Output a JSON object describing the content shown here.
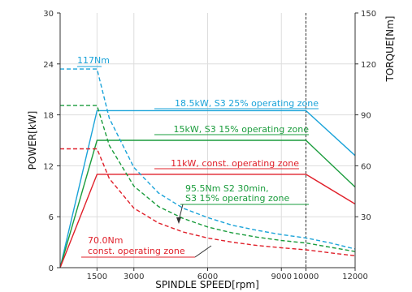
{
  "chart_data": {
    "type": "line",
    "xlabel": "SPINDLE SPEED[rpm]",
    "ylabel_left": "POWER[kW]",
    "ylabel_right": "TORQUE[Nm]",
    "xlim": [
      0,
      12000
    ],
    "ylim_left": [
      0,
      30
    ],
    "ylim_right": [
      0,
      150
    ],
    "x_ticks": [
      {
        "value": 1500,
        "label": "1500"
      },
      {
        "value": 3000,
        "label": "3000"
      },
      {
        "value": 6000,
        "label": "6000"
      },
      {
        "value": 9000,
        "label": "9000"
      },
      {
        "value": 10000,
        "label": "10000"
      },
      {
        "value": 12000,
        "label": "12000"
      }
    ],
    "y_ticks_left": [
      {
        "value": 0,
        "label": "0"
      },
      {
        "value": 6,
        "label": "6"
      },
      {
        "value": 12,
        "label": "12"
      },
      {
        "value": 18,
        "label": "18"
      },
      {
        "value": 24,
        "label": "24"
      },
      {
        "value": 30,
        "label": "30"
      }
    ],
    "y_ticks_right": [
      {
        "value": 30,
        "label": "30"
      },
      {
        "value": 60,
        "label": "60"
      },
      {
        "value": 90,
        "label": "90"
      },
      {
        "value": 120,
        "label": "120"
      },
      {
        "value": 150,
        "label": "150"
      }
    ],
    "series": [
      {
        "kind": "power",
        "color": "#1aa3d9",
        "x": [
          0,
          1500,
          10000,
          12000
        ],
        "y": [
          0,
          18.5,
          18.5,
          13.2
        ]
      },
      {
        "kind": "power",
        "color": "#1a9c3c",
        "x": [
          0,
          1500,
          10000,
          12000
        ],
        "y": [
          0,
          15,
          15,
          9.5
        ]
      },
      {
        "kind": "power",
        "color": "#e0202a",
        "x": [
          0,
          1500,
          10000,
          12000
        ],
        "y": [
          0,
          11,
          11,
          7.5
        ]
      },
      {
        "kind": "torque",
        "color": "#1aa3d9",
        "x": [
          0,
          1500,
          2000,
          3000,
          4000,
          5000,
          6000,
          7000,
          8000,
          9000,
          10000,
          11000,
          12000
        ],
        "y": [
          117,
          117,
          88,
          59,
          44,
          35,
          29.5,
          25,
          22,
          19.5,
          17.5,
          14.5,
          11
        ]
      },
      {
        "kind": "torque",
        "color": "#1a9c3c",
        "x": [
          0,
          1500,
          2000,
          3000,
          4000,
          5000,
          6000,
          7000,
          8000,
          9000,
          10000,
          11000,
          12000
        ],
        "y": [
          95.5,
          95.5,
          72,
          48,
          36,
          29,
          24,
          20.5,
          18,
          16,
          14.5,
          12,
          9.5
        ]
      },
      {
        "kind": "torque",
        "color": "#e0202a",
        "x": [
          0,
          1500,
          2000,
          3000,
          4000,
          5000,
          6000,
          7000,
          8000,
          9000,
          10000,
          11000,
          12000
        ],
        "y": [
          70,
          70,
          52.5,
          35,
          26.3,
          21,
          17.5,
          15,
          13.1,
          11.7,
          10.5,
          8.7,
          7
        ]
      }
    ],
    "reference_line_x": 10000,
    "annotations": [
      {
        "text": "117Nm",
        "color": "#1aa3d9"
      },
      {
        "text": "18.5kW, S3 25% operating zone",
        "color": "#1aa3d9"
      },
      {
        "text": "15kW, S3 15% operating zone",
        "color": "#1a9c3c"
      },
      {
        "text": "11kW, const. operating zone",
        "color": "#e0202a"
      },
      {
        "text": "95.5Nm S2 30min,",
        "color": "#1a9c3c"
      },
      {
        "text": "S3 15% operating zone",
        "color": "#1a9c3c"
      },
      {
        "text": "70.0Nm",
        "color": "#e0202a"
      },
      {
        "text": "const. operating zone",
        "color": "#e0202a"
      }
    ]
  }
}
